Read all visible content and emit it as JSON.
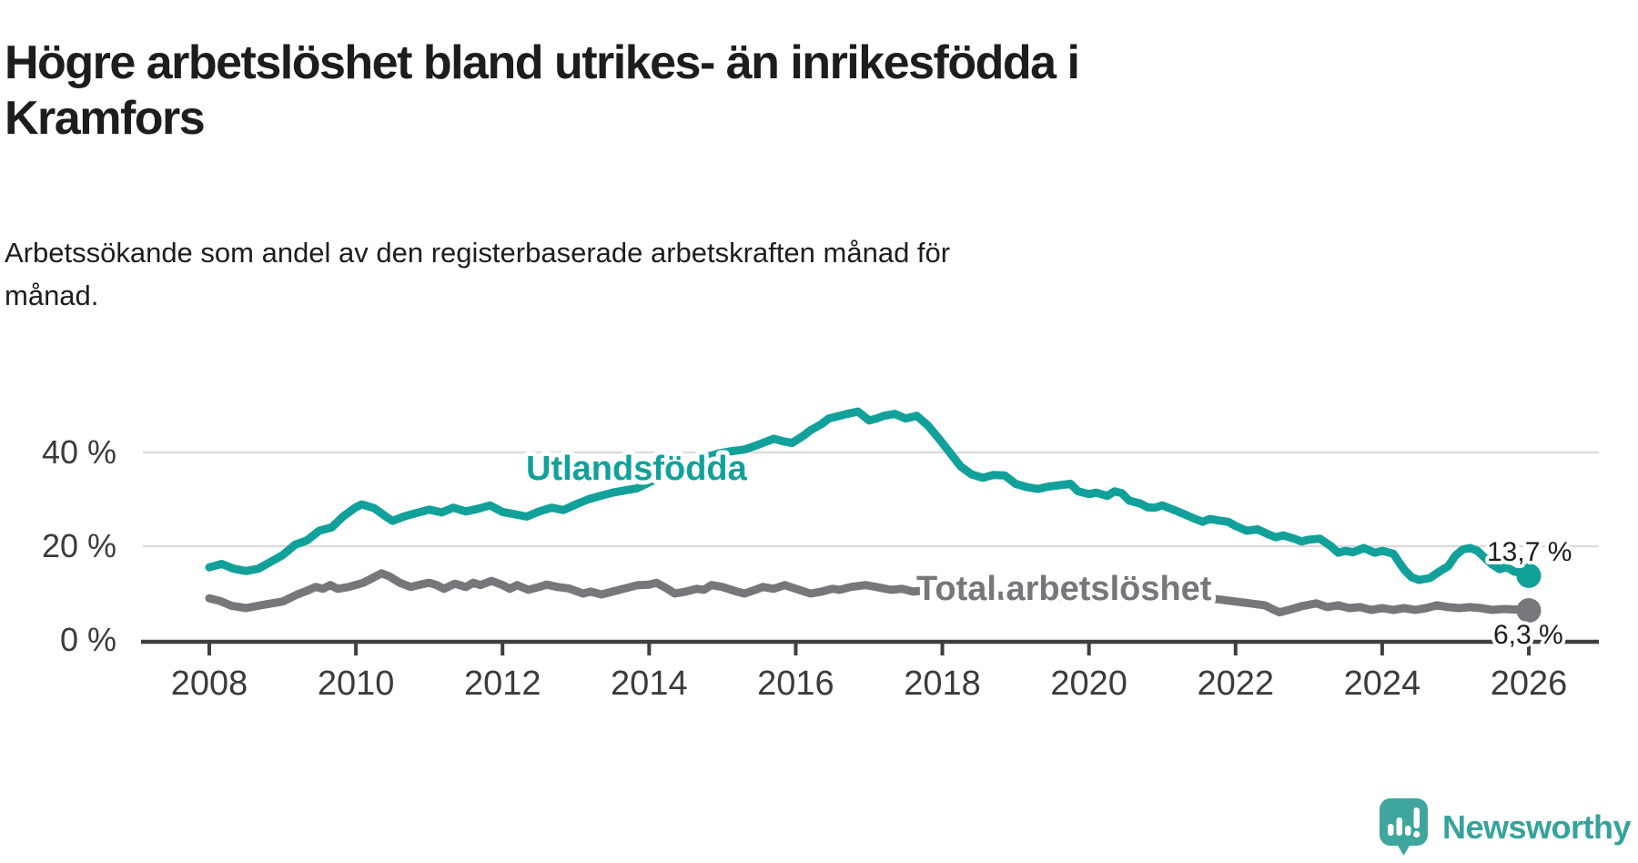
{
  "header": {
    "title": "Högre arbetslöshet bland utrikes- än inrikesfödda i\nKramfors",
    "subtitle": "Arbetssökande som andel av den registerbaserade arbetskraften månad för\nmånad."
  },
  "branding": {
    "logo_text": "Newsworthy"
  },
  "colors": {
    "teal": "#11a19a",
    "gray": "#76767b",
    "axis": "#3f3f3f",
    "gridline": "#dcdcdc",
    "text": "#1d1d1b",
    "tick_text": "#3b3b3b",
    "logo_icon": "#3fa69e",
    "logo_text": "#35a39b"
  },
  "chart_data": {
    "type": "line",
    "title": "Högre arbetslöshet bland utrikes- än inrikesfödda i Kramfors",
    "subtitle": "Arbetssökande som andel av den registerbaserade arbetskraften månad för månad.",
    "unit": "%",
    "grid": "horizontal",
    "legend_position": "inline-on-lines",
    "x_axis": {
      "range": [
        2007.1,
        2026.95
      ],
      "ticks": [
        {
          "value": 2008,
          "label": "2008"
        },
        {
          "value": 2010,
          "label": "2010"
        },
        {
          "value": 2012,
          "label": "2012"
        },
        {
          "value": 2014,
          "label": "2014"
        },
        {
          "value": 2016,
          "label": "2016"
        },
        {
          "value": 2018,
          "label": "2018"
        },
        {
          "value": 2020,
          "label": "2020"
        },
        {
          "value": 2022,
          "label": "2022"
        },
        {
          "value": 2024,
          "label": "2024"
        },
        {
          "value": 2026,
          "label": "2026"
        }
      ]
    },
    "y_axis": {
      "range": [
        0,
        52
      ],
      "ticks": [
        {
          "value": 0,
          "label": "0 %"
        },
        {
          "value": 20,
          "label": "20 %"
        },
        {
          "value": 40,
          "label": "40 %"
        }
      ]
    },
    "series": [
      {
        "name": "Utlandsfödda",
        "color_key": "teal",
        "end_label": "13,7 %",
        "end_value": 13.7,
        "points": [
          [
            2008.0,
            15.5
          ],
          [
            2008.17,
            16.2
          ],
          [
            2008.33,
            15.2
          ],
          [
            2008.5,
            14.7
          ],
          [
            2008.67,
            15.2
          ],
          [
            2008.83,
            16.6
          ],
          [
            2009.0,
            18.1
          ],
          [
            2009.17,
            20.3
          ],
          [
            2009.33,
            21.2
          ],
          [
            2009.5,
            23.3
          ],
          [
            2009.67,
            24.0
          ],
          [
            2009.83,
            26.4
          ],
          [
            2010.0,
            28.3
          ],
          [
            2010.08,
            28.9
          ],
          [
            2010.25,
            28.1
          ],
          [
            2010.42,
            26.2
          ],
          [
            2010.5,
            25.4
          ],
          [
            2010.67,
            26.4
          ],
          [
            2010.83,
            27.1
          ],
          [
            2011.0,
            27.8
          ],
          [
            2011.17,
            27.2
          ],
          [
            2011.33,
            28.2
          ],
          [
            2011.5,
            27.4
          ],
          [
            2011.67,
            28.0
          ],
          [
            2011.83,
            28.7
          ],
          [
            2012.0,
            27.3
          ],
          [
            2012.17,
            26.8
          ],
          [
            2012.33,
            26.3
          ],
          [
            2012.5,
            27.4
          ],
          [
            2012.67,
            28.2
          ],
          [
            2012.83,
            27.7
          ],
          [
            2013.0,
            28.9
          ],
          [
            2013.17,
            30.0
          ],
          [
            2013.33,
            30.7
          ],
          [
            2013.5,
            31.4
          ],
          [
            2013.67,
            31.9
          ],
          [
            2013.83,
            32.3
          ],
          [
            2014.0,
            33.6
          ],
          [
            2014.25,
            35.3
          ],
          [
            2014.5,
            37.2
          ],
          [
            2014.75,
            38.8
          ],
          [
            2014.95,
            39.8
          ],
          [
            2015.1,
            40.2
          ],
          [
            2015.3,
            40.6
          ],
          [
            2015.45,
            41.4
          ],
          [
            2015.6,
            42.3
          ],
          [
            2015.7,
            42.9
          ],
          [
            2015.85,
            42.3
          ],
          [
            2015.95,
            42.0
          ],
          [
            2016.1,
            43.5
          ],
          [
            2016.2,
            44.7
          ],
          [
            2016.35,
            46.0
          ],
          [
            2016.45,
            47.2
          ],
          [
            2016.6,
            47.8
          ],
          [
            2016.7,
            48.2
          ],
          [
            2016.85,
            48.7
          ],
          [
            2017.0,
            46.8
          ],
          [
            2017.1,
            47.2
          ],
          [
            2017.2,
            47.8
          ],
          [
            2017.35,
            48.2
          ],
          [
            2017.5,
            47.2
          ],
          [
            2017.65,
            47.8
          ],
          [
            2017.8,
            45.8
          ],
          [
            2017.95,
            43.0
          ],
          [
            2018.1,
            40.0
          ],
          [
            2018.25,
            37.0
          ],
          [
            2018.4,
            35.3
          ],
          [
            2018.55,
            34.6
          ],
          [
            2018.7,
            35.2
          ],
          [
            2018.85,
            35.1
          ],
          [
            2019.0,
            33.3
          ],
          [
            2019.15,
            32.6
          ],
          [
            2019.3,
            32.2
          ],
          [
            2019.45,
            32.7
          ],
          [
            2019.6,
            33.0
          ],
          [
            2019.75,
            33.3
          ],
          [
            2019.85,
            31.7
          ],
          [
            2020.0,
            31.1
          ],
          [
            2020.1,
            31.4
          ],
          [
            2020.25,
            30.7
          ],
          [
            2020.35,
            31.7
          ],
          [
            2020.45,
            31.3
          ],
          [
            2020.55,
            29.7
          ],
          [
            2020.7,
            29.1
          ],
          [
            2020.8,
            28.3
          ],
          [
            2020.9,
            28.2
          ],
          [
            2021.0,
            28.7
          ],
          [
            2021.15,
            27.8
          ],
          [
            2021.3,
            26.8
          ],
          [
            2021.45,
            25.8
          ],
          [
            2021.55,
            25.2
          ],
          [
            2021.65,
            25.8
          ],
          [
            2021.8,
            25.4
          ],
          [
            2021.9,
            25.2
          ],
          [
            2022.0,
            24.3
          ],
          [
            2022.15,
            23.3
          ],
          [
            2022.3,
            23.6
          ],
          [
            2022.45,
            22.5
          ],
          [
            2022.55,
            21.9
          ],
          [
            2022.65,
            22.3
          ],
          [
            2022.8,
            21.6
          ],
          [
            2022.9,
            21.0
          ],
          [
            2023.0,
            21.4
          ],
          [
            2023.15,
            21.6
          ],
          [
            2023.3,
            20.0
          ],
          [
            2023.4,
            18.6
          ],
          [
            2023.5,
            19.0
          ],
          [
            2023.6,
            18.7
          ],
          [
            2023.75,
            19.6
          ],
          [
            2023.9,
            18.6
          ],
          [
            2024.0,
            19.0
          ],
          [
            2024.15,
            18.4
          ],
          [
            2024.3,
            15.0
          ],
          [
            2024.4,
            13.4
          ],
          [
            2024.5,
            12.8
          ],
          [
            2024.65,
            13.2
          ],
          [
            2024.8,
            14.8
          ],
          [
            2024.9,
            15.7
          ],
          [
            2025.0,
            18.0
          ],
          [
            2025.1,
            19.3
          ],
          [
            2025.2,
            19.6
          ],
          [
            2025.3,
            19.0
          ],
          [
            2025.4,
            17.5
          ],
          [
            2025.5,
            16.1
          ],
          [
            2025.6,
            15.1
          ],
          [
            2025.7,
            15.5
          ],
          [
            2025.8,
            14.6
          ],
          [
            2025.9,
            14.3
          ],
          [
            2026.0,
            13.7
          ]
        ]
      },
      {
        "name": "Total arbetslöshet",
        "color_key": "gray",
        "end_label": "6,3 %",
        "end_value": 6.3,
        "points": [
          [
            2008.0,
            8.9
          ],
          [
            2008.15,
            8.3
          ],
          [
            2008.3,
            7.3
          ],
          [
            2008.5,
            6.8
          ],
          [
            2008.7,
            7.4
          ],
          [
            2008.85,
            7.8
          ],
          [
            2009.0,
            8.2
          ],
          [
            2009.2,
            9.7
          ],
          [
            2009.35,
            10.6
          ],
          [
            2009.45,
            11.3
          ],
          [
            2009.55,
            10.9
          ],
          [
            2009.65,
            11.7
          ],
          [
            2009.75,
            10.9
          ],
          [
            2009.9,
            11.3
          ],
          [
            2010.1,
            12.2
          ],
          [
            2010.25,
            13.4
          ],
          [
            2010.35,
            14.2
          ],
          [
            2010.45,
            13.6
          ],
          [
            2010.6,
            12.2
          ],
          [
            2010.75,
            11.3
          ],
          [
            2010.85,
            11.7
          ],
          [
            2011.0,
            12.2
          ],
          [
            2011.1,
            11.7
          ],
          [
            2011.2,
            10.9
          ],
          [
            2011.35,
            12.0
          ],
          [
            2011.5,
            11.3
          ],
          [
            2011.6,
            12.2
          ],
          [
            2011.7,
            11.7
          ],
          [
            2011.85,
            12.6
          ],
          [
            2012.0,
            11.7
          ],
          [
            2012.1,
            10.9
          ],
          [
            2012.2,
            11.7
          ],
          [
            2012.35,
            10.7
          ],
          [
            2012.5,
            11.3
          ],
          [
            2012.6,
            11.8
          ],
          [
            2012.75,
            11.3
          ],
          [
            2012.9,
            11.0
          ],
          [
            2013.1,
            9.9
          ],
          [
            2013.2,
            10.3
          ],
          [
            2013.35,
            9.7
          ],
          [
            2013.5,
            10.3
          ],
          [
            2013.65,
            10.9
          ],
          [
            2013.85,
            11.7
          ],
          [
            2014.0,
            11.8
          ],
          [
            2014.1,
            12.2
          ],
          [
            2014.25,
            10.9
          ],
          [
            2014.35,
            9.9
          ],
          [
            2014.5,
            10.3
          ],
          [
            2014.65,
            10.9
          ],
          [
            2014.75,
            10.7
          ],
          [
            2014.85,
            11.7
          ],
          [
            2015.0,
            11.3
          ],
          [
            2015.2,
            10.3
          ],
          [
            2015.3,
            9.9
          ],
          [
            2015.45,
            10.7
          ],
          [
            2015.55,
            11.3
          ],
          [
            2015.7,
            10.9
          ],
          [
            2015.85,
            11.7
          ],
          [
            2016.0,
            10.9
          ],
          [
            2016.2,
            9.9
          ],
          [
            2016.35,
            10.3
          ],
          [
            2016.5,
            10.9
          ],
          [
            2016.6,
            10.7
          ],
          [
            2016.75,
            11.3
          ],
          [
            2016.95,
            11.7
          ],
          [
            2017.1,
            11.3
          ],
          [
            2017.3,
            10.7
          ],
          [
            2017.45,
            10.9
          ],
          [
            2017.6,
            10.3
          ],
          [
            2017.8,
            10.6
          ],
          [
            2018.0,
            10.8
          ],
          [
            2018.3,
            9.9
          ],
          [
            2018.6,
            9.6
          ],
          [
            2019.0,
            9.3
          ],
          [
            2019.4,
            9.0
          ],
          [
            2019.8,
            9.2
          ],
          [
            2020.2,
            9.8
          ],
          [
            2020.5,
            10.6
          ],
          [
            2020.8,
            10.3
          ],
          [
            2021.0,
            10.0
          ],
          [
            2021.4,
            9.2
          ],
          [
            2021.8,
            8.6
          ],
          [
            2022.0,
            8.2
          ],
          [
            2022.2,
            7.8
          ],
          [
            2022.4,
            7.4
          ],
          [
            2022.5,
            6.6
          ],
          [
            2022.6,
            5.9
          ],
          [
            2022.75,
            6.5
          ],
          [
            2022.9,
            7.2
          ],
          [
            2023.1,
            7.8
          ],
          [
            2023.25,
            7.0
          ],
          [
            2023.4,
            7.4
          ],
          [
            2023.55,
            6.8
          ],
          [
            2023.7,
            7.0
          ],
          [
            2023.85,
            6.4
          ],
          [
            2024.0,
            6.8
          ],
          [
            2024.15,
            6.4
          ],
          [
            2024.3,
            6.8
          ],
          [
            2024.45,
            6.4
          ],
          [
            2024.6,
            6.8
          ],
          [
            2024.75,
            7.4
          ],
          [
            2024.9,
            7.0
          ],
          [
            2025.05,
            6.8
          ],
          [
            2025.2,
            7.0
          ],
          [
            2025.35,
            6.8
          ],
          [
            2025.5,
            6.4
          ],
          [
            2025.65,
            6.6
          ],
          [
            2025.8,
            6.5
          ],
          [
            2025.9,
            6.4
          ],
          [
            2026.0,
            6.3
          ]
        ]
      }
    ]
  }
}
